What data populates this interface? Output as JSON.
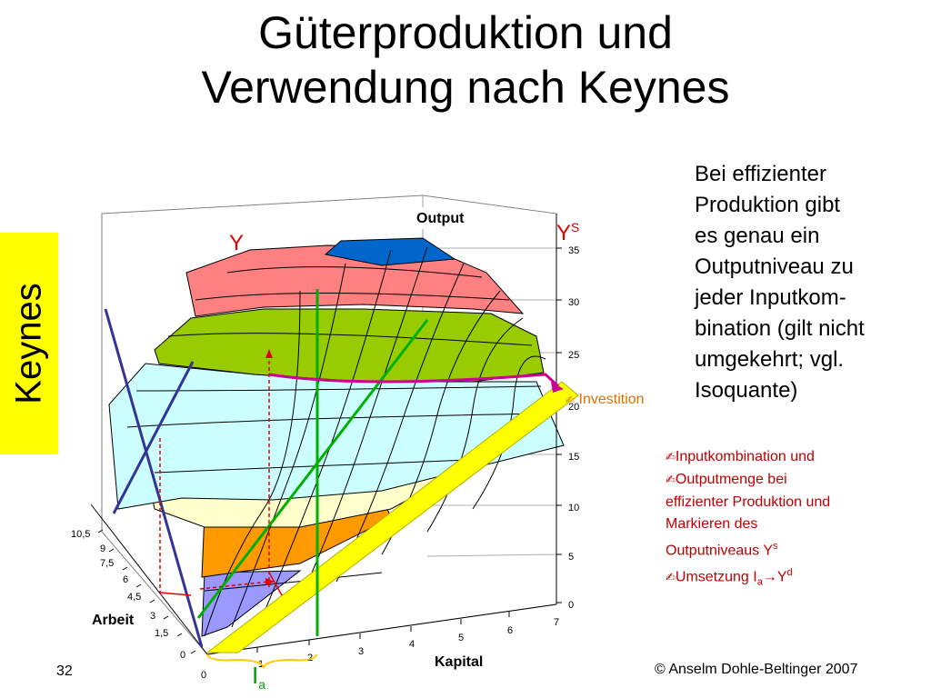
{
  "title": {
    "line1": "Güterproduktion und",
    "line2": "Verwendung nach Keynes"
  },
  "sidebar": {
    "label": "Keynes"
  },
  "chart": {
    "axis_output_label": "Output",
    "axis_arbeit_label": "Arbeit",
    "axis_kapital_label": "Kapital",
    "output_ticks": [
      "0",
      "5",
      "10",
      "15",
      "20",
      "25",
      "30",
      "35"
    ],
    "arbeit_ticks": [
      "0",
      "1,5",
      "3",
      "4,5",
      "6",
      "7,5",
      "9",
      "10,5"
    ],
    "kapital_ticks": [
      "0",
      "1",
      "2",
      "3",
      "4",
      "5",
      "6",
      "7"
    ],
    "label_y": "Y",
    "label_ys": "Y",
    "label_ys_sup": "S",
    "label_ia": "I",
    "label_ia_sub": "a",
    "investition_label": "Investition",
    "band_colors": [
      "#9999ff",
      "#ff9900",
      "#ffffcc",
      "#ccffff",
      "#99cc00",
      "#ff8080",
      "#0066cc"
    ]
  },
  "right_text": [
    "Bei effizienter",
    "Produktion gibt",
    "es genau ein",
    "Outputniveau zu",
    "jeder Inputkom-",
    "bination (gilt nicht",
    "umgekehrt; vgl.",
    "Isoquante)"
  ],
  "bullets": {
    "icon": "scroll-icon",
    "items": [
      {
        "text": "Inputkombination und"
      },
      {
        "text": "Outputmenge bei"
      },
      {
        "text": "effizienter Produktion und",
        "plain": true
      },
      {
        "text": "Markieren des",
        "plain": true
      },
      {
        "text": "Outputniveaus Y",
        "sup": "s",
        "plain": true
      },
      {
        "text": "Umsetzung I",
        "sub": "a",
        "arrow": "→Y",
        "sup": "d"
      }
    ]
  },
  "footer": {
    "page_number": "32",
    "copyright": "© Anselm Dohle-Beltinger 2007"
  }
}
